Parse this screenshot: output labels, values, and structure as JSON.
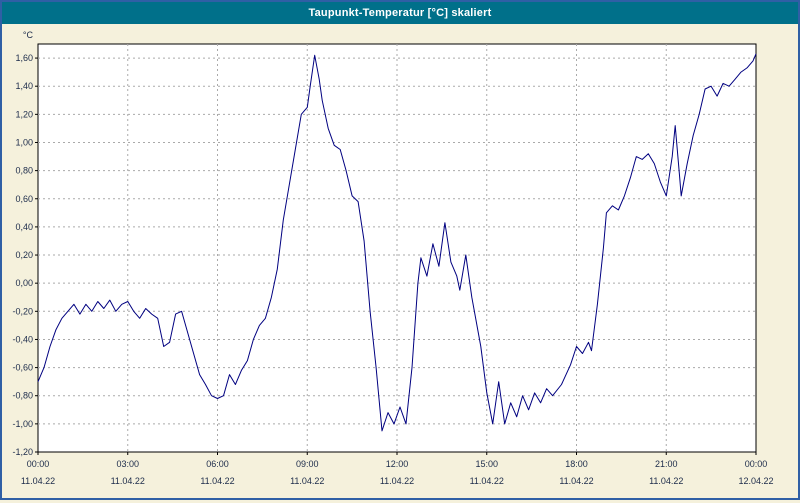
{
  "window": {
    "title": "Taupunkt-Temperatur [°C] skaliert"
  },
  "colors": {
    "title_bar_bg": "#00708a",
    "title_text": "#ffffff",
    "window_border": "#2f5fa5",
    "background": "#f5f1dc",
    "plot_bg": "#ffffff",
    "plot_border": "#000000",
    "grid": "#aaaaaa",
    "axis_text": "#1c2b4a",
    "line": "#000080"
  },
  "chart_data": {
    "type": "line",
    "title": "Taupunkt-Temperatur [°C] skaliert",
    "ylabel_unit": "°C",
    "grid": true,
    "legend": "none",
    "ylim": [
      -1.2,
      1.7
    ],
    "xlim_hours": [
      0,
      24
    ],
    "y_ticks": [
      {
        "value": 1.6,
        "label": "1,60"
      },
      {
        "value": 1.4,
        "label": "1,40"
      },
      {
        "value": 1.2,
        "label": "1,20"
      },
      {
        "value": 1.0,
        "label": "1,00"
      },
      {
        "value": 0.8,
        "label": "0,80"
      },
      {
        "value": 0.6,
        "label": "0,60"
      },
      {
        "value": 0.4,
        "label": "0,40"
      },
      {
        "value": 0.2,
        "label": "0,20"
      },
      {
        "value": 0.0,
        "label": "0,00"
      },
      {
        "value": -0.2,
        "label": "-0,20"
      },
      {
        "value": -0.4,
        "label": "-0,40"
      },
      {
        "value": -0.6,
        "label": "-0,60"
      },
      {
        "value": -0.8,
        "label": "-0,80"
      },
      {
        "value": -1.0,
        "label": "-1,00"
      },
      {
        "value": -1.2,
        "label": "-1,20"
      }
    ],
    "x_ticks": [
      {
        "hour": 0,
        "time": "00:00",
        "date": "11.04.22"
      },
      {
        "hour": 3,
        "time": "03:00",
        "date": "11.04.22"
      },
      {
        "hour": 6,
        "time": "06:00",
        "date": "11.04.22"
      },
      {
        "hour": 9,
        "time": "09:00",
        "date": "11.04.22"
      },
      {
        "hour": 12,
        "time": "12:00",
        "date": "11.04.22"
      },
      {
        "hour": 15,
        "time": "15:00",
        "date": "11.04.22"
      },
      {
        "hour": 18,
        "time": "18:00",
        "date": "11.04.22"
      },
      {
        "hour": 21,
        "time": "21:00",
        "date": "11.04.22"
      },
      {
        "hour": 24,
        "time": "00:00",
        "date": "12.04.22"
      }
    ],
    "series": [
      {
        "name": "Taupunkt-Temperatur",
        "color": "#000080",
        "points": [
          [
            0.0,
            -0.7
          ],
          [
            0.2,
            -0.6
          ],
          [
            0.4,
            -0.45
          ],
          [
            0.6,
            -0.33
          ],
          [
            0.8,
            -0.25
          ],
          [
            1.0,
            -0.2
          ],
          [
            1.2,
            -0.15
          ],
          [
            1.4,
            -0.22
          ],
          [
            1.6,
            -0.15
          ],
          [
            1.8,
            -0.2
          ],
          [
            2.0,
            -0.13
          ],
          [
            2.2,
            -0.18
          ],
          [
            2.4,
            -0.12
          ],
          [
            2.6,
            -0.2
          ],
          [
            2.8,
            -0.15
          ],
          [
            3.0,
            -0.13
          ],
          [
            3.2,
            -0.2
          ],
          [
            3.4,
            -0.25
          ],
          [
            3.6,
            -0.18
          ],
          [
            3.8,
            -0.22
          ],
          [
            4.0,
            -0.25
          ],
          [
            4.2,
            -0.45
          ],
          [
            4.4,
            -0.42
          ],
          [
            4.6,
            -0.22
          ],
          [
            4.8,
            -0.2
          ],
          [
            5.0,
            -0.35
          ],
          [
            5.2,
            -0.5
          ],
          [
            5.4,
            -0.65
          ],
          [
            5.6,
            -0.72
          ],
          [
            5.8,
            -0.8
          ],
          [
            6.0,
            -0.82
          ],
          [
            6.2,
            -0.8
          ],
          [
            6.4,
            -0.65
          ],
          [
            6.6,
            -0.72
          ],
          [
            6.8,
            -0.62
          ],
          [
            7.0,
            -0.55
          ],
          [
            7.2,
            -0.4
          ],
          [
            7.4,
            -0.3
          ],
          [
            7.6,
            -0.25
          ],
          [
            7.8,
            -0.1
          ],
          [
            8.0,
            0.1
          ],
          [
            8.2,
            0.45
          ],
          [
            8.4,
            0.7
          ],
          [
            8.6,
            0.95
          ],
          [
            8.8,
            1.2
          ],
          [
            9.0,
            1.25
          ],
          [
            9.1,
            1.4
          ],
          [
            9.25,
            1.62
          ],
          [
            9.4,
            1.45
          ],
          [
            9.5,
            1.3
          ],
          [
            9.7,
            1.1
          ],
          [
            9.9,
            0.98
          ],
          [
            10.1,
            0.95
          ],
          [
            10.3,
            0.8
          ],
          [
            10.5,
            0.62
          ],
          [
            10.7,
            0.58
          ],
          [
            10.9,
            0.3
          ],
          [
            11.1,
            -0.2
          ],
          [
            11.3,
            -0.6
          ],
          [
            11.5,
            -1.05
          ],
          [
            11.7,
            -0.92
          ],
          [
            11.9,
            -1.0
          ],
          [
            12.1,
            -0.88
          ],
          [
            12.3,
            -1.0
          ],
          [
            12.5,
            -0.6
          ],
          [
            12.7,
            0.0
          ],
          [
            12.8,
            0.18
          ],
          [
            13.0,
            0.05
          ],
          [
            13.2,
            0.28
          ],
          [
            13.4,
            0.12
          ],
          [
            13.6,
            0.43
          ],
          [
            13.8,
            0.15
          ],
          [
            14.0,
            0.05
          ],
          [
            14.1,
            -0.05
          ],
          [
            14.3,
            0.2
          ],
          [
            14.5,
            -0.1
          ],
          [
            14.8,
            -0.45
          ],
          [
            15.0,
            -0.78
          ],
          [
            15.2,
            -1.0
          ],
          [
            15.4,
            -0.7
          ],
          [
            15.6,
            -1.0
          ],
          [
            15.8,
            -0.85
          ],
          [
            16.0,
            -0.95
          ],
          [
            16.2,
            -0.8
          ],
          [
            16.4,
            -0.9
          ],
          [
            16.6,
            -0.78
          ],
          [
            16.8,
            -0.85
          ],
          [
            17.0,
            -0.75
          ],
          [
            17.2,
            -0.8
          ],
          [
            17.5,
            -0.72
          ],
          [
            17.8,
            -0.58
          ],
          [
            18.0,
            -0.45
          ],
          [
            18.2,
            -0.5
          ],
          [
            18.4,
            -0.42
          ],
          [
            18.5,
            -0.48
          ],
          [
            18.7,
            -0.15
          ],
          [
            18.9,
            0.25
          ],
          [
            19.0,
            0.5
          ],
          [
            19.2,
            0.55
          ],
          [
            19.4,
            0.52
          ],
          [
            19.6,
            0.62
          ],
          [
            19.8,
            0.75
          ],
          [
            20.0,
            0.9
          ],
          [
            20.2,
            0.88
          ],
          [
            20.4,
            0.92
          ],
          [
            20.6,
            0.85
          ],
          [
            20.8,
            0.72
          ],
          [
            21.0,
            0.62
          ],
          [
            21.2,
            0.9
          ],
          [
            21.3,
            1.12
          ],
          [
            21.45,
            0.75
          ],
          [
            21.5,
            0.62
          ],
          [
            21.7,
            0.85
          ],
          [
            21.9,
            1.05
          ],
          [
            22.1,
            1.2
          ],
          [
            22.3,
            1.38
          ],
          [
            22.5,
            1.4
          ],
          [
            22.7,
            1.33
          ],
          [
            22.9,
            1.42
          ],
          [
            23.1,
            1.4
          ],
          [
            23.3,
            1.45
          ],
          [
            23.5,
            1.5
          ],
          [
            23.7,
            1.53
          ],
          [
            23.9,
            1.58
          ],
          [
            24.0,
            1.63
          ]
        ]
      }
    ]
  }
}
